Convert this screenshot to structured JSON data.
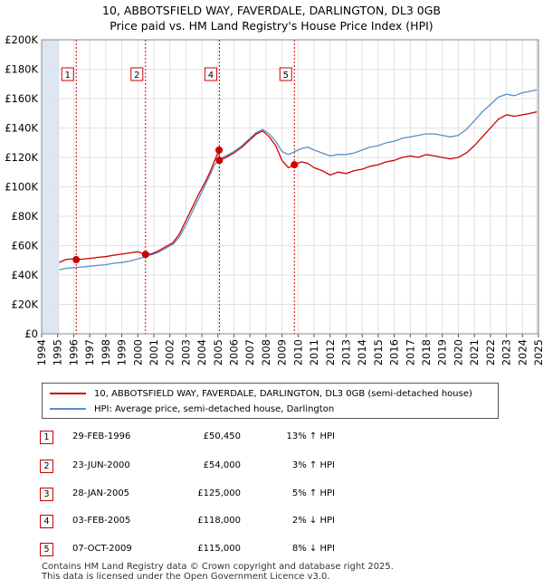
{
  "title": "10, ABBOTSFIELD WAY, FAVERDALE, DARLINGTON, DL3 0GB",
  "subtitle": "Price paid vs. HM Land Registry's House Price Index (HPI)",
  "colors": {
    "property": "#cc0000",
    "hpi": "#5b8ec9",
    "band": "#dde6f2",
    "grid": "#e2e2e2",
    "marker_line": "#cc0000"
  },
  "chart_data": {
    "type": "line",
    "xlim": [
      1994,
      2025
    ],
    "ylim": [
      0,
      200000
    ],
    "y_ticks": [
      0,
      20000,
      40000,
      60000,
      80000,
      100000,
      120000,
      140000,
      160000,
      180000,
      200000
    ],
    "y_tick_labels": [
      "£0",
      "£20K",
      "£40K",
      "£60K",
      "£80K",
      "£100K",
      "£120K",
      "£140K",
      "£160K",
      "£180K",
      "£200K"
    ],
    "x_ticks": [
      "1994",
      "1995",
      "1996",
      "1997",
      "1998",
      "1999",
      "2000",
      "2001",
      "2002",
      "2003",
      "2004",
      "2005",
      "2006",
      "2007",
      "2008",
      "2009",
      "2010",
      "2011",
      "2012",
      "2013",
      "2014",
      "2015",
      "2016",
      "2017",
      "2018",
      "2019",
      "2020",
      "2021",
      "2022",
      "2023",
      "2024",
      "2025"
    ],
    "shaded_ranges": [
      [
        1994,
        1995.1
      ],
      [
        2024.85,
        2025
      ]
    ],
    "grid": true,
    "legend_position": "below",
    "series": [
      {
        "name": "10, ABBOTSFIELD WAY, FAVERDALE, DARLINGTON, DL3 0GB (semi-detached house)",
        "color": "#cc0000",
        "points": [
          [
            1995.1,
            48500
          ],
          [
            1995.5,
            50500
          ],
          [
            1996.0,
            51000
          ],
          [
            1996.16,
            50450
          ],
          [
            1996.6,
            50800
          ],
          [
            1997.0,
            51300
          ],
          [
            1997.5,
            52000
          ],
          [
            1998.0,
            52500
          ],
          [
            1998.5,
            53500
          ],
          [
            1999.0,
            54200
          ],
          [
            1999.5,
            55000
          ],
          [
            2000.0,
            55800
          ],
          [
            2000.48,
            54000
          ],
          [
            2000.9,
            54500
          ],
          [
            2001.3,
            56500
          ],
          [
            2001.7,
            59000
          ],
          [
            2002.2,
            62000
          ],
          [
            2002.6,
            68000
          ],
          [
            2003.0,
            77000
          ],
          [
            2003.4,
            86000
          ],
          [
            2003.8,
            95000
          ],
          [
            2004.2,
            103000
          ],
          [
            2004.5,
            110000
          ],
          [
            2004.8,
            118000
          ],
          [
            2005.07,
            125000
          ],
          [
            2005.09,
            118000
          ],
          [
            2005.5,
            120000
          ],
          [
            2006.0,
            123000
          ],
          [
            2006.5,
            127000
          ],
          [
            2007.0,
            132000
          ],
          [
            2007.4,
            136000
          ],
          [
            2007.8,
            138000
          ],
          [
            2008.2,
            134000
          ],
          [
            2008.6,
            128000
          ],
          [
            2009.0,
            118000
          ],
          [
            2009.4,
            113000
          ],
          [
            2009.77,
            115000
          ],
          [
            2010.2,
            117000
          ],
          [
            2010.6,
            116000
          ],
          [
            2011.0,
            113000
          ],
          [
            2011.5,
            111000
          ],
          [
            2012.0,
            108000
          ],
          [
            2012.5,
            110000
          ],
          [
            2013.0,
            109000
          ],
          [
            2013.5,
            111000
          ],
          [
            2014.0,
            112000
          ],
          [
            2014.5,
            114000
          ],
          [
            2015.0,
            115000
          ],
          [
            2015.5,
            117000
          ],
          [
            2016.0,
            118000
          ],
          [
            2016.5,
            120000
          ],
          [
            2017.0,
            121000
          ],
          [
            2017.5,
            120000
          ],
          [
            2018.0,
            122000
          ],
          [
            2018.5,
            121000
          ],
          [
            2019.0,
            120000
          ],
          [
            2019.5,
            119000
          ],
          [
            2020.0,
            120000
          ],
          [
            2020.5,
            123000
          ],
          [
            2021.0,
            128000
          ],
          [
            2021.5,
            134000
          ],
          [
            2022.0,
            140000
          ],
          [
            2022.5,
            146000
          ],
          [
            2023.0,
            149000
          ],
          [
            2023.5,
            148000
          ],
          [
            2024.0,
            149000
          ],
          [
            2024.5,
            150000
          ],
          [
            2024.9,
            151000
          ]
        ]
      },
      {
        "name": "HPI: Average price, semi-detached house, Darlington",
        "color": "#5b8ec9",
        "points": [
          [
            1995.1,
            43500
          ],
          [
            1995.5,
            44500
          ],
          [
            1996.0,
            45000
          ],
          [
            1996.5,
            45500
          ],
          [
            1997.0,
            46000
          ],
          [
            1997.5,
            46500
          ],
          [
            1998.0,
            47000
          ],
          [
            1998.5,
            48000
          ],
          [
            1999.0,
            48500
          ],
          [
            1999.5,
            49500
          ],
          [
            2000.0,
            51000
          ],
          [
            2000.5,
            52500
          ],
          [
            2000.9,
            54000
          ],
          [
            2001.3,
            55500
          ],
          [
            2001.7,
            58000
          ],
          [
            2002.2,
            61000
          ],
          [
            2002.6,
            66000
          ],
          [
            2003.0,
            74000
          ],
          [
            2003.4,
            83000
          ],
          [
            2003.8,
            92000
          ],
          [
            2004.2,
            101000
          ],
          [
            2004.5,
            108000
          ],
          [
            2004.8,
            115000
          ],
          [
            2005.1,
            119000
          ],
          [
            2005.5,
            121000
          ],
          [
            2006.0,
            124000
          ],
          [
            2006.5,
            128000
          ],
          [
            2007.0,
            133000
          ],
          [
            2007.4,
            137000
          ],
          [
            2007.8,
            139000
          ],
          [
            2008.2,
            136000
          ],
          [
            2008.6,
            131000
          ],
          [
            2009.0,
            124000
          ],
          [
            2009.4,
            122000
          ],
          [
            2009.8,
            124000
          ],
          [
            2010.2,
            126000
          ],
          [
            2010.6,
            127000
          ],
          [
            2011.0,
            125000
          ],
          [
            2011.5,
            123000
          ],
          [
            2012.0,
            121000
          ],
          [
            2012.5,
            122000
          ],
          [
            2013.0,
            122000
          ],
          [
            2013.5,
            123000
          ],
          [
            2014.0,
            125000
          ],
          [
            2014.5,
            127000
          ],
          [
            2015.0,
            128000
          ],
          [
            2015.5,
            130000
          ],
          [
            2016.0,
            131000
          ],
          [
            2016.5,
            133000
          ],
          [
            2017.0,
            134000
          ],
          [
            2017.5,
            135000
          ],
          [
            2018.0,
            136000
          ],
          [
            2018.5,
            136000
          ],
          [
            2019.0,
            135000
          ],
          [
            2019.5,
            134000
          ],
          [
            2020.0,
            135000
          ],
          [
            2020.5,
            139000
          ],
          [
            2021.0,
            145000
          ],
          [
            2021.5,
            151000
          ],
          [
            2022.0,
            156000
          ],
          [
            2022.5,
            161000
          ],
          [
            2023.0,
            163000
          ],
          [
            2023.5,
            162000
          ],
          [
            2024.0,
            164000
          ],
          [
            2024.5,
            165000
          ],
          [
            2024.9,
            166000
          ]
        ]
      }
    ],
    "sales": [
      {
        "label": "1",
        "x": 1996.16,
        "y": 50450
      },
      {
        "label": "2",
        "x": 2000.48,
        "y": 54000
      },
      {
        "label": "3",
        "x": 2005.07,
        "y": 125000
      },
      {
        "label": "4",
        "x": 2005.09,
        "y": 118000
      },
      {
        "label": "5",
        "x": 2009.77,
        "y": 115000
      }
    ],
    "chart_labels": [
      "1",
      "2",
      "4",
      "5"
    ]
  },
  "legend": {
    "items": [
      {
        "label": "10, ABBOTSFIELD WAY, FAVERDALE, DARLINGTON, DL3 0GB (semi-detached house)"
      },
      {
        "label": "HPI: Average price, semi-detached house, Darlington"
      }
    ]
  },
  "table": {
    "rows": [
      {
        "num": "1",
        "date": "29-FEB-1996",
        "price": "£50,450",
        "hpi": "13% ↑ HPI"
      },
      {
        "num": "2",
        "date": "23-JUN-2000",
        "price": "£54,000",
        "hpi": "3% ↑ HPI"
      },
      {
        "num": "3",
        "date": "28-JAN-2005",
        "price": "£125,000",
        "hpi": "5% ↑ HPI"
      },
      {
        "num": "4",
        "date": "03-FEB-2005",
        "price": "£118,000",
        "hpi": "2% ↓ HPI"
      },
      {
        "num": "5",
        "date": "07-OCT-2009",
        "price": "£115,000",
        "hpi": "8% ↓ HPI"
      }
    ]
  },
  "footer": {
    "line1": "Contains HM Land Registry data © Crown copyright and database right 2025.",
    "line2": "This data is licensed under the Open Government Licence v3.0."
  }
}
